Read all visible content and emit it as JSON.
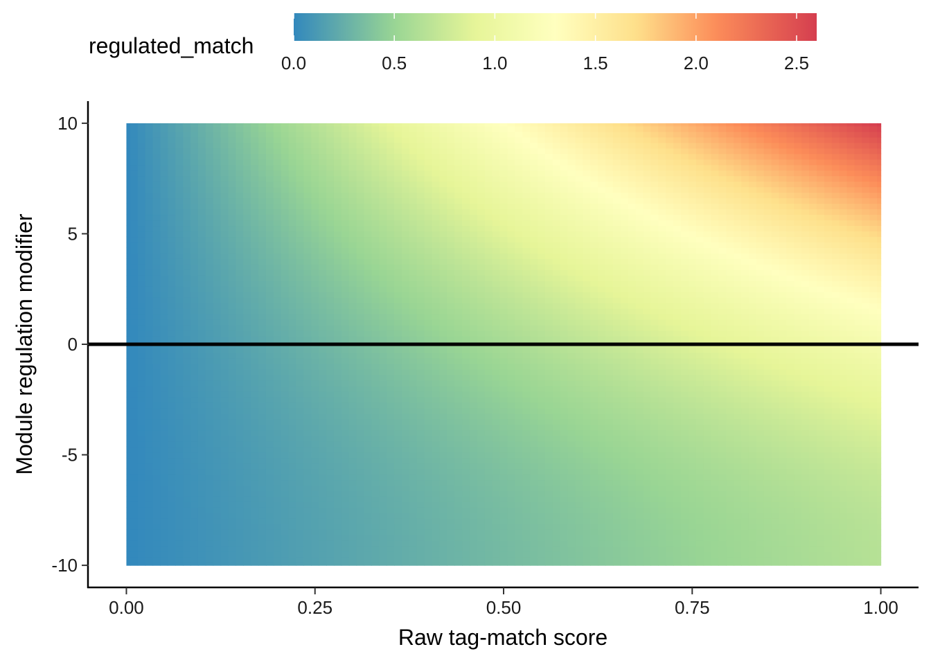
{
  "chart_data": {
    "type": "heatmap",
    "xlabel": "Raw tag-match score",
    "ylabel": "Module regulation modifier",
    "x_ticks": [
      "0.00",
      "0.25",
      "0.50",
      "0.75",
      "1.00"
    ],
    "x_tick_values": [
      0,
      0.25,
      0.5,
      0.75,
      1.0
    ],
    "y_ticks": [
      "-10",
      "-5",
      "0",
      "5",
      "10"
    ],
    "y_tick_values": [
      -10,
      -5,
      0,
      5,
      10
    ],
    "xlim": [
      -0.05,
      1.05
    ],
    "ylim": [
      -11,
      11
    ],
    "x_range": [
      0,
      1
    ],
    "y_range": [
      -10,
      10
    ],
    "grid": false,
    "hline": {
      "y": 0,
      "color": "#000000"
    },
    "legend": {
      "title": "regulated_match",
      "position": "top",
      "ticks": [
        "0.0",
        "0.5",
        "1.0",
        "1.5",
        "2.0",
        "2.5"
      ],
      "tick_values": [
        0,
        0.5,
        1.0,
        1.5,
        2.0,
        2.5
      ],
      "range": [
        0,
        2.6
      ]
    },
    "colorscale": [
      "#3288bd",
      "#99d594",
      "#e6f598",
      "#ffffbf",
      "#fee08b",
      "#fc8d59",
      "#d53e4f"
    ],
    "colorscale_stops": [
      0,
      0.5,
      0.9,
      1.3,
      1.7,
      2.1,
      2.6
    ],
    "grid_cells_x": 101,
    "grid_cells_y": 81
  }
}
